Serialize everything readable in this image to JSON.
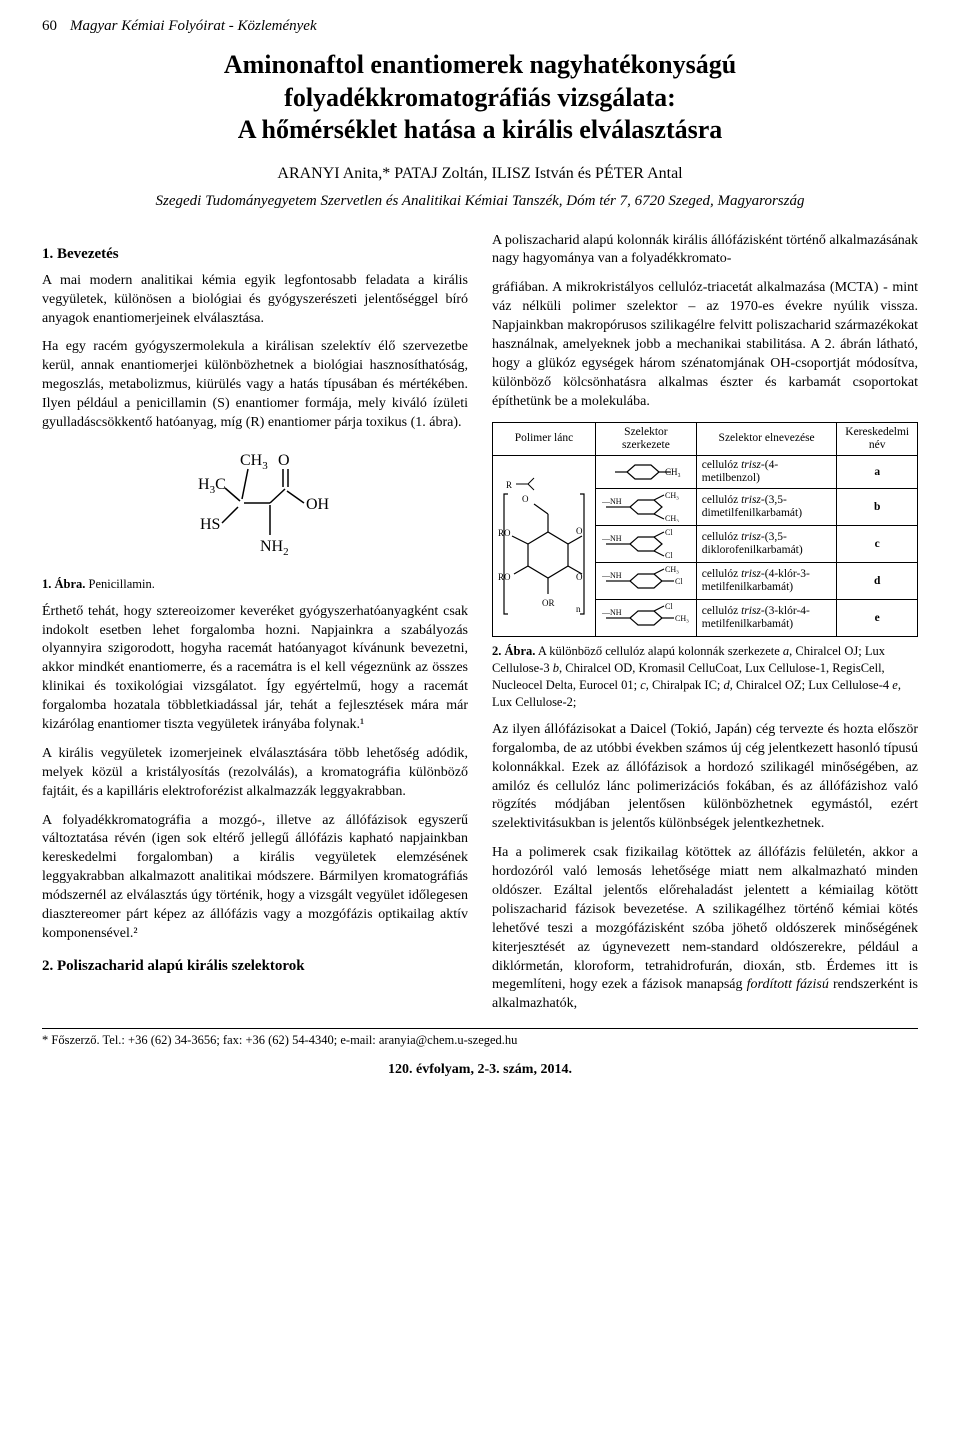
{
  "page_number": "60",
  "journal": "Magyar Kémiai Folyóirat - Közlemények",
  "title_lines": [
    "Aminonaftol enantiomerek nagyhatékonyságú",
    "folyadékkromatográfiás vizsgálata:",
    "A hőmérséklet hatása a királis elválasztásra"
  ],
  "authors_html": "ARANYI Anita,* PATAJ Zoltán, ILISZ István és PÉTER Antal",
  "affiliation": "Szegedi Tudományegyetem Szervetlen és Analitikai Kémiai Tanszék, Dóm tér 7, 6720 Szeged, Magyarország",
  "h_intro": "1. Bevezetés",
  "p_intro_1": "A mai modern analitikai kémia egyik legfontosabb feladata a királis vegyületek, különösen a biológiai és gyógyszerészeti jelentőséggel bíró anyagok enantiomerjeinek elválasztása.",
  "p_intro_2": "Ha egy racém gyógyszermolekula a királisan szelektív élő szervezetbe kerül, annak enantiomerjei különbözhetnek a biológiai hasznosíthatóság, megoszlás, metabolizmus, kiürülés vagy a hatás típusában és mértékében. Ilyen például a penicillamin (S) enantiomer formája, mely kiváló ízületi gyulladáscsökkentő hatóanyag, míg (R) enantiomer párja toxikus (1. ábra).",
  "fig1_label": "1. Ábra.",
  "fig1_text": " Penicillamin.",
  "p_after_fig1_1": "Érthető tehát, hogy sztereoizomer keveréket gyógyszerhatóanyagként csak indokolt esetben lehet forgalomba hozni. Napjainkra a szabályozás olyannyira szigorodott, hogyha racemát hatóanyagot kívánunk bevezetni, akkor mindkét enantiomerre, és a racemátra is el kell végeznünk az összes klinikai és toxikológiai vizsgálatot. Így egyértelmű, hogy a racemát forgalomba hozatala többletkiadással jár, tehát a fejlesztések mára már kizárólag enantiomer tiszta vegyületek irányába folynak.¹",
  "p_after_fig1_2": "A királis vegyületek izomerjeinek elválasztására több lehetőség adódik, melyek közül a kristályosítás (rezolválás), a kromatográfia különböző fajtáit, és a kapilláris elektroforézist alkalmazzák leggyakrabban.",
  "p_after_fig1_3": "A folyadékkromatográfia a mozgó-, illetve az állófázisok egyszerű változtatása révén (igen sok eltérő jellegű állófázis kapható napjainkban kereskedelmi forgalomban) a királis vegyületek elemzésének leggyakrabban alkalmazott analitikai módszere. Bármilyen kromatográfiás módszernél az elválasztás úgy történik, hogy a vizsgált vegyület időlegesen diasztereomer párt képez az állófázis vagy a mozgófázis optikailag aktív komponensével.²",
  "h_polys": "2. Poliszacharid alapú királis szelektorok",
  "p_polys_1": "A poliszacharid alapú kolonnák királis állófázisként történő alkalmazásának nagy hagyománya van a folyadékkromato-",
  "p_right_1": "gráfiában. A mikrokristályos cellulóz-triacetát alkalmazása (MCTA) - mint váz nélküli polimer szelektor – az 1970-es évekre nyúlik vissza. Napjainkban makropórusos szilikagélre felvitt poliszacharid származékokat használnak, amelyeknek jobb a mechanikai stabilitása. A 2. ábrán látható, hogy a glükóz egységek három szénatomjának OH-csoportját módosítva, különböző kölcsönhatásra alkalmas észter és karbamát csoportokat építhetünk be a molekulába.",
  "selector_table": {
    "headers": [
      "Polimer lánc",
      "Szelektor szerkezete",
      "Szelektor elnevezése",
      "Kereskedelmi név"
    ],
    "rows": [
      {
        "name_html": "cellulóz <i>trisz</i>-(4-metilbenzol)",
        "label": "a"
      },
      {
        "name_html": "cellulóz <i>trisz</i>-(3,5-dimetilfenilkarbamát)",
        "label": "b"
      },
      {
        "name_html": "cellulóz <i>trisz</i>-(3,5-diklorofenilkarbamát)",
        "label": "c"
      },
      {
        "name_html": "cellulóz <i>trisz</i>-(4-klór-3-metilfenilkarbamát)",
        "label": "d"
      },
      {
        "name_html": "cellulóz <i>trisz</i>-(3-klór-4-metilfenilkarbamát)",
        "label": "e"
      }
    ]
  },
  "fig2_label": "2. Ábra.",
  "fig2_text_html": " A különböző cellulóz alapú kolonnák szerkezete <i>a</i>, Chiralcel OJ; Lux Cellulose-3 <i>b</i>, Chiralcel OD, Kromasil CelluCoat, Lux Cellulose-1, RegisCell, Nucleocel Delta, Eurocel 01; <i>c</i>, Chiralpak IC; <i>d</i>, Chiralcel OZ; Lux Cellulose-4 <i>e</i>, Lux Cellulose-2;",
  "p_right_2": "Az ilyen állófázisokat a Daicel (Tokió, Japán) cég tervezte és hozta először forgalomba, de az utóbbi években számos új cég jelentkezett hasonló típusú kolonnákkal. Ezek az állófázisok a hordozó szilikagél minőségében, az amilóz és cellulóz lánc polimerizációs fokában, és az állófázishoz való rögzítés módjában jelentősen különbözhetnek egymástól, ezért szelektivitásukban is jelentős különbségek jelentkezhetnek.",
  "p_right_3_html": "Ha a polimerek csak fizikailag kötöttek az állófázis felületén, akkor a hordozóról való lemosás lehetősége miatt nem alkalmazható minden oldószer. Ezáltal jelentős előrehaladást jelentett a kémiailag kötött poliszacharid fázisok bevezetése. A szilikagélhez történő kémiai kötés lehetővé teszi a mozgófázisként szóba jöhető oldószerek minőségének kiterjesztését az úgynevezett nem-standard oldószerekre, például a diklórmetán, kloroform, tetrahidrofurán, dioxán, stb. Érdemes itt is megemlíteni, hogy ezek a fázisok manapság <i>fordított fázisú</i> rendszerként is alkalmazhatók,",
  "footnote": "* Főszerző. Tel.: +36 (62) 34-3656; fax: +36 (62) 54-4340; e-mail: aranyia@chem.u-szeged.hu",
  "issue": "120. évfolyam, 2-3. szám, 2014.",
  "colors": {
    "text": "#000000",
    "background": "#ffffff",
    "border": "#000000"
  },
  "penicillamine_svg_labels": {
    "CH3_top": "CH",
    "CH3_top_sub": "3",
    "H3C": "H",
    "H3C_sub": "3",
    "H3C_c": "C",
    "HS": "HS",
    "O": "O",
    "OH": "OH",
    "NH2": "NH",
    "NH2_sub": "2"
  }
}
